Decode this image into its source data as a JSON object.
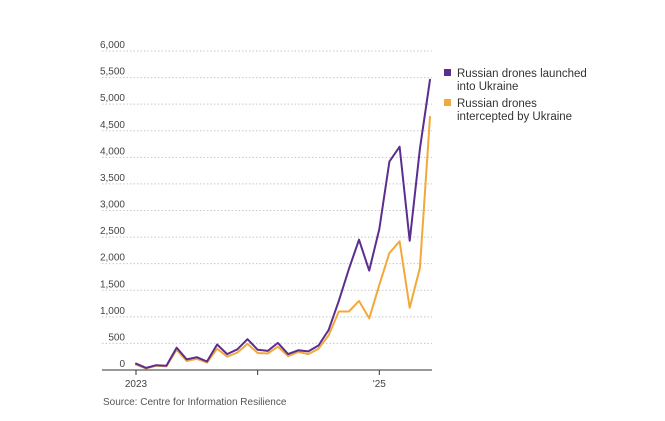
{
  "chart_data": {
    "type": "line",
    "title": "",
    "xlabel": "",
    "ylabel": "",
    "ylim": [
      0,
      6000
    ],
    "y_ticks": [
      0,
      500,
      1000,
      1500,
      2000,
      2500,
      3000,
      3500,
      4000,
      4500,
      5000,
      5500,
      6000
    ],
    "y_tick_labels": [
      "0",
      "500",
      "1,000",
      "1,500",
      "2,000",
      "2,500",
      "3,000",
      "3,500",
      "4,000",
      "4,500",
      "5,000",
      "5,500",
      "6,000"
    ],
    "x_tick_labels": [
      {
        "index": 0,
        "label": "2023"
      },
      {
        "index": 12,
        "label": ""
      },
      {
        "index": 24,
        "label": "'25"
      }
    ],
    "x_axis_max_index": 29,
    "gridlines": true,
    "legend_position": "top-right",
    "series": [
      {
        "name": "Russian drones launched into Ukraine",
        "legend_lines": [
          "Russian drones launched",
          "into Ukraine"
        ],
        "color": "#5b2d8e",
        "values": [
          120,
          40,
          90,
          80,
          420,
          200,
          240,
          160,
          480,
          300,
          390,
          580,
          380,
          360,
          510,
          300,
          370,
          350,
          460,
          750,
          1300,
          1900,
          2450,
          1870,
          2650,
          3920,
          4200,
          2430,
          4160,
          5460
        ]
      },
      {
        "name": "Russian drones intercepted by Ukraine",
        "legend_lines": [
          "Russian drones",
          "intercepted by Ukraine"
        ],
        "color": "#f2a93b",
        "values": [
          100,
          30,
          80,
          70,
          380,
          170,
          210,
          140,
          400,
          250,
          330,
          490,
          320,
          310,
          440,
          260,
          340,
          300,
          400,
          650,
          1100,
          1100,
          1300,
          970,
          1600,
          2200,
          2420,
          1170,
          1920,
          4760
        ]
      }
    ]
  },
  "source": "Source: Centre for Information Resilience"
}
